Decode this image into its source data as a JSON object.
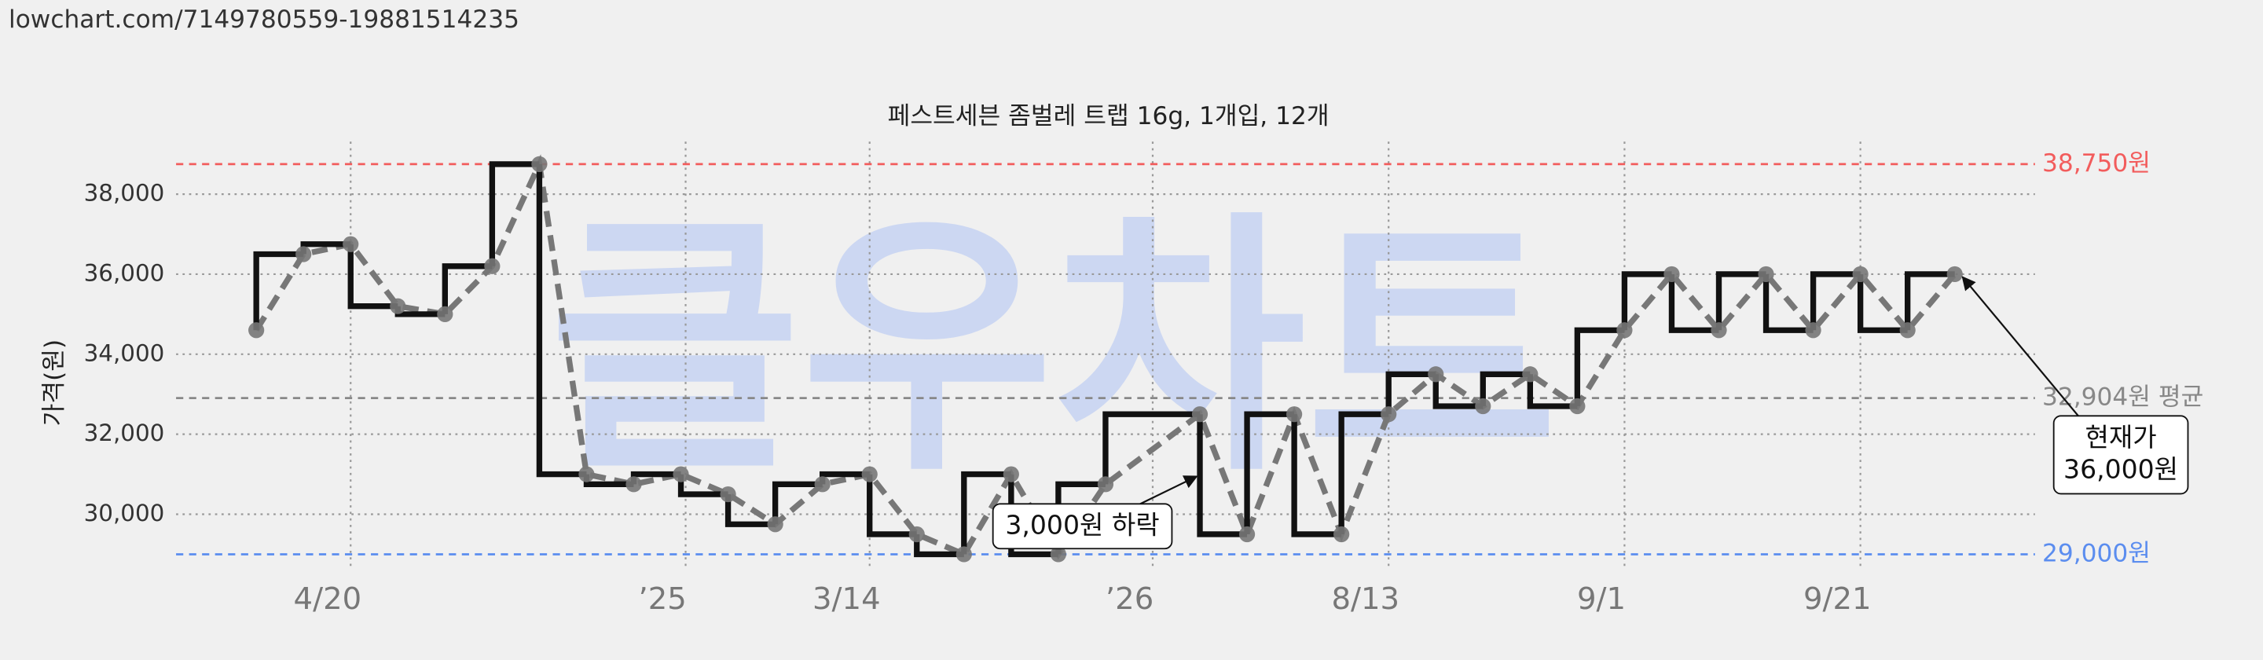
{
  "header": {
    "url": "lowchart.com/7149780559-19881514235"
  },
  "chart_data": {
    "type": "step-line",
    "title": "페스트세븐 좀벌레 트랩 16g, 1개입, 12개",
    "ylabel": "가격(원)",
    "watermark": "클우차트",
    "x": [
      0,
      1,
      2,
      3,
      4,
      5,
      6,
      7,
      8,
      9,
      10,
      11,
      12,
      13,
      14,
      15,
      16,
      17,
      18,
      20,
      21,
      22,
      23,
      24,
      25,
      26,
      27,
      28,
      29,
      30,
      31,
      32,
      33,
      34,
      35,
      36
    ],
    "series": [
      {
        "color": "#111111",
        "marker_color": "#777777",
        "values": [
          34600,
          36500,
          36750,
          35200,
          35000,
          36200,
          38750,
          31000,
          30750,
          31000,
          30500,
          29750,
          30750,
          31000,
          29500,
          29000,
          31000,
          29000,
          30750,
          32500,
          29500,
          32500,
          29500,
          32500,
          33500,
          32700,
          33500,
          32700,
          34600,
          36000,
          34600,
          36000,
          34600,
          36000,
          34600,
          36000
        ]
      }
    ],
    "xlim": [
      -1.7,
      37.7
    ],
    "xticks": [
      {
        "value": 2,
        "label": "4/20"
      },
      {
        "value": 9.1,
        "label": "’25"
      },
      {
        "value": 13,
        "label": "3/14"
      },
      {
        "value": 19,
        "label": "’26"
      },
      {
        "value": 24,
        "label": "8/13"
      },
      {
        "value": 29,
        "label": "9/1"
      },
      {
        "value": 34,
        "label": "9/21"
      }
    ],
    "ylim": [
      28600,
      39600
    ],
    "yticks": [
      {
        "value": 30000,
        "label": "30,000"
      },
      {
        "value": 32000,
        "label": "32,000"
      },
      {
        "value": 34000,
        "label": "34,000"
      },
      {
        "value": 36000,
        "label": "36,000"
      },
      {
        "value": 38000,
        "label": "38,000"
      }
    ],
    "grid": true,
    "reference_lines": [
      {
        "value": 38750,
        "label": "38,750원",
        "color": "#f25c5c"
      },
      {
        "value": 32904,
        "label": "32,904원 평균",
        "color": "#888888"
      },
      {
        "value": 29000,
        "label": "29,000원",
        "color": "#5b8def"
      }
    ],
    "annotations": [
      {
        "lines": [
          "3,000원 하락"
        ]
      },
      {
        "lines": [
          "현재가",
          "36,000원"
        ]
      }
    ]
  }
}
